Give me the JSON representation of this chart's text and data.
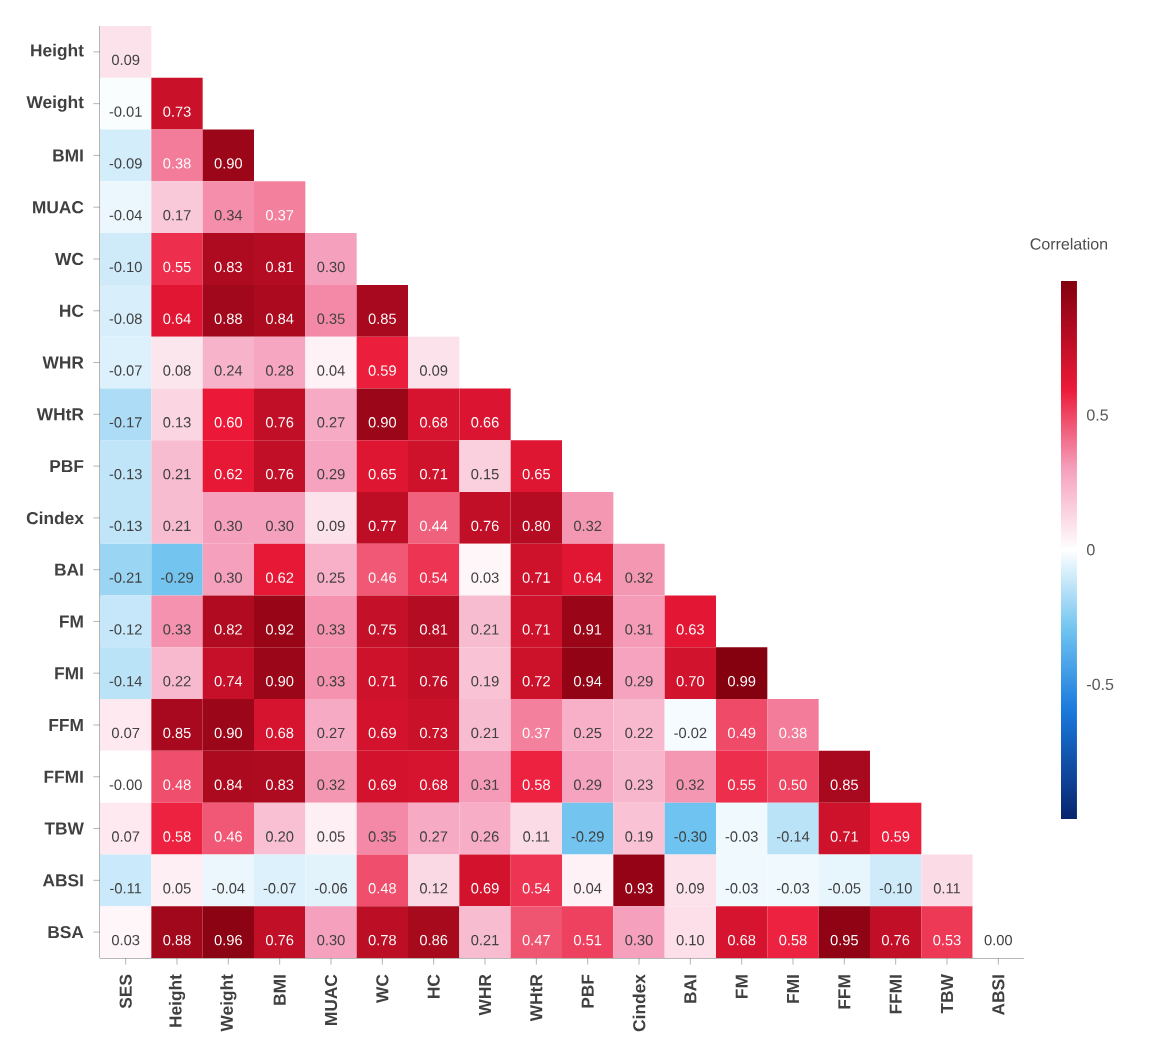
{
  "chart_data": {
    "type": "heatmap",
    "clabel": "Correlation",
    "clim": [
      -1,
      1
    ],
    "cticks": [
      -0.5,
      0,
      0.5
    ],
    "categories": [
      "SES",
      "Height",
      "Weight",
      "BMI",
      "MUAC",
      "WC",
      "HC",
      "WHR",
      "WHtR",
      "PBF",
      "Cindex",
      "BAI",
      "FM",
      "FMI",
      "FFM",
      "FFMI",
      "TBW",
      "ABSI"
    ],
    "y_categories": [
      "Height",
      "Weight",
      "BMI",
      "MUAC",
      "WC",
      "HC",
      "WHR",
      "WHtR",
      "PBF",
      "Cindex",
      "BAI",
      "FM",
      "FMI",
      "FFM",
      "FFMI",
      "TBW",
      "ABSI",
      "BSA"
    ],
    "cells": [
      [
        0.09,
        null,
        null,
        null,
        null,
        null,
        null,
        null,
        null,
        null,
        null,
        null,
        null,
        null,
        null,
        null,
        null,
        null
      ],
      [
        -0.01,
        0.73,
        null,
        null,
        null,
        null,
        null,
        null,
        null,
        null,
        null,
        null,
        null,
        null,
        null,
        null,
        null,
        null
      ],
      [
        -0.09,
        0.38,
        0.9,
        null,
        null,
        null,
        null,
        null,
        null,
        null,
        null,
        null,
        null,
        null,
        null,
        null,
        null,
        null
      ],
      [
        -0.04,
        0.17,
        0.34,
        0.37,
        null,
        null,
        null,
        null,
        null,
        null,
        null,
        null,
        null,
        null,
        null,
        null,
        null,
        null
      ],
      [
        -0.1,
        0.55,
        0.83,
        0.81,
        0.3,
        null,
        null,
        null,
        null,
        null,
        null,
        null,
        null,
        null,
        null,
        null,
        null,
        null
      ],
      [
        -0.08,
        0.64,
        0.88,
        0.84,
        0.35,
        0.85,
        null,
        null,
        null,
        null,
        null,
        null,
        null,
        null,
        null,
        null,
        null,
        null
      ],
      [
        -0.07,
        0.08,
        0.24,
        0.28,
        0.04,
        0.59,
        0.09,
        null,
        null,
        null,
        null,
        null,
        null,
        null,
        null,
        null,
        null,
        null
      ],
      [
        -0.17,
        0.13,
        0.6,
        0.76,
        0.27,
        0.9,
        0.68,
        0.66,
        null,
        null,
        null,
        null,
        null,
        null,
        null,
        null,
        null,
        null
      ],
      [
        -0.13,
        0.21,
        0.62,
        0.76,
        0.29,
        0.65,
        0.71,
        0.15,
        0.65,
        null,
        null,
        null,
        null,
        null,
        null,
        null,
        null,
        null
      ],
      [
        -0.13,
        0.21,
        0.3,
        0.3,
        0.09,
        0.77,
        0.44,
        0.76,
        0.8,
        0.32,
        null,
        null,
        null,
        null,
        null,
        null,
        null,
        null
      ],
      [
        -0.21,
        -0.29,
        0.3,
        0.62,
        0.25,
        0.46,
        0.54,
        0.03,
        0.71,
        0.64,
        0.32,
        null,
        null,
        null,
        null,
        null,
        null,
        null
      ],
      [
        -0.12,
        0.33,
        0.82,
        0.92,
        0.33,
        0.75,
        0.81,
        0.21,
        0.71,
        0.91,
        0.31,
        0.63,
        null,
        null,
        null,
        null,
        null,
        null
      ],
      [
        -0.14,
        0.22,
        0.74,
        0.9,
        0.33,
        0.71,
        0.76,
        0.19,
        0.72,
        0.94,
        0.29,
        0.7,
        0.99,
        null,
        null,
        null,
        null,
        null
      ],
      [
        0.07,
        0.85,
        0.9,
        0.68,
        0.27,
        0.69,
        0.73,
        0.21,
        0.37,
        0.25,
        0.22,
        -0.02,
        0.49,
        0.38,
        null,
        null,
        null,
        null
      ],
      [
        0.0,
        0.48,
        0.84,
        0.83,
        0.32,
        0.69,
        0.68,
        0.31,
        0.58,
        0.29,
        0.23,
        0.32,
        0.55,
        0.5,
        0.85,
        null,
        null,
        null
      ],
      [
        0.07,
        0.58,
        0.46,
        0.2,
        0.05,
        0.35,
        0.27,
        0.26,
        0.11,
        -0.29,
        0.19,
        -0.3,
        -0.03,
        -0.14,
        0.71,
        0.59,
        null,
        null
      ],
      [
        -0.11,
        0.05,
        -0.04,
        -0.07,
        -0.06,
        0.48,
        0.12,
        0.69,
        0.54,
        0.04,
        0.93,
        0.09,
        -0.03,
        -0.03,
        -0.05,
        -0.1,
        0.11,
        null
      ],
      [
        0.03,
        0.88,
        0.96,
        0.76,
        0.3,
        0.78,
        0.86,
        0.21,
        0.47,
        0.51,
        0.3,
        0.1,
        0.68,
        0.58,
        0.95,
        0.76,
        0.53,
        0.0
      ]
    ],
    "cell_labels": [
      [
        "0.09",
        null,
        null,
        null,
        null,
        null,
        null,
        null,
        null,
        null,
        null,
        null,
        null,
        null,
        null,
        null,
        null,
        null
      ],
      [
        "-0.01",
        "0.73",
        null,
        null,
        null,
        null,
        null,
        null,
        null,
        null,
        null,
        null,
        null,
        null,
        null,
        null,
        null,
        null
      ],
      [
        "-0.09",
        "0.38",
        "0.90",
        null,
        null,
        null,
        null,
        null,
        null,
        null,
        null,
        null,
        null,
        null,
        null,
        null,
        null,
        null
      ],
      [
        "-0.04",
        "0.17",
        "0.34",
        "0.37",
        null,
        null,
        null,
        null,
        null,
        null,
        null,
        null,
        null,
        null,
        null,
        null,
        null,
        null
      ],
      [
        "-0.10",
        "0.55",
        "0.83",
        "0.81",
        "0.30",
        null,
        null,
        null,
        null,
        null,
        null,
        null,
        null,
        null,
        null,
        null,
        null,
        null
      ],
      [
        "-0.08",
        "0.64",
        "0.88",
        "0.84",
        "0.35",
        "0.85",
        null,
        null,
        null,
        null,
        null,
        null,
        null,
        null,
        null,
        null,
        null,
        null
      ],
      [
        "-0.07",
        "0.08",
        "0.24",
        "0.28",
        "0.04",
        "0.59",
        "0.09",
        null,
        null,
        null,
        null,
        null,
        null,
        null,
        null,
        null,
        null,
        null
      ],
      [
        "-0.17",
        "0.13",
        "0.60",
        "0.76",
        "0.27",
        "0.90",
        "0.68",
        "0.66",
        null,
        null,
        null,
        null,
        null,
        null,
        null,
        null,
        null,
        null
      ],
      [
        "-0.13",
        "0.21",
        "0.62",
        "0.76",
        "0.29",
        "0.65",
        "0.71",
        "0.15",
        "0.65",
        null,
        null,
        null,
        null,
        null,
        null,
        null,
        null,
        null
      ],
      [
        "-0.13",
        "0.21",
        "0.30",
        "0.30",
        "0.09",
        "0.77",
        "0.44",
        "0.76",
        "0.80",
        "0.32",
        null,
        null,
        null,
        null,
        null,
        null,
        null,
        null
      ],
      [
        "-0.21",
        "-0.29",
        "0.30",
        "0.62",
        "0.25",
        "0.46",
        "0.54",
        "0.03",
        "0.71",
        "0.64",
        "0.32",
        null,
        null,
        null,
        null,
        null,
        null,
        null
      ],
      [
        "-0.12",
        "0.33",
        "0.82",
        "0.92",
        "0.33",
        "0.75",
        "0.81",
        "0.21",
        "0.71",
        "0.91",
        "0.31",
        "0.63",
        null,
        null,
        null,
        null,
        null,
        null
      ],
      [
        "-0.14",
        "0.22",
        "0.74",
        "0.90",
        "0.33",
        "0.71",
        "0.76",
        "0.19",
        "0.72",
        "0.94",
        "0.29",
        "0.70",
        "0.99",
        null,
        null,
        null,
        null,
        null
      ],
      [
        "0.07",
        "0.85",
        "0.90",
        "0.68",
        "0.27",
        "0.69",
        "0.73",
        "0.21",
        "0.37",
        "0.25",
        "0.22",
        "-0.02",
        "0.49",
        "0.38",
        null,
        null,
        null,
        null
      ],
      [
        "-0.00",
        "0.48",
        "0.84",
        "0.83",
        "0.32",
        "0.69",
        "0.68",
        "0.31",
        "0.58",
        "0.29",
        "0.23",
        "0.32",
        "0.55",
        "0.50",
        "0.85",
        null,
        null,
        null
      ],
      [
        "0.07",
        "0.58",
        "0.46",
        "0.20",
        "0.05",
        "0.35",
        "0.27",
        "0.26",
        "0.11",
        "-0.29",
        "0.19",
        "-0.30",
        "-0.03",
        "-0.14",
        "0.71",
        "0.59",
        null,
        null
      ],
      [
        "-0.11",
        "0.05",
        "-0.04",
        "-0.07",
        "-0.06",
        "0.48",
        "0.12",
        "0.69",
        "0.54",
        "0.04",
        "0.93",
        "0.09",
        "-0.03",
        "-0.03",
        "-0.05",
        "-0.10",
        "0.11",
        null
      ],
      [
        "0.03",
        "0.88",
        "0.96",
        "0.76",
        "0.30",
        "0.78",
        "0.86",
        "0.21",
        "0.47",
        "0.51",
        "0.30",
        "0.10",
        "0.68",
        "0.58",
        "0.95",
        "0.76",
        "0.53",
        "0.00"
      ]
    ]
  }
}
